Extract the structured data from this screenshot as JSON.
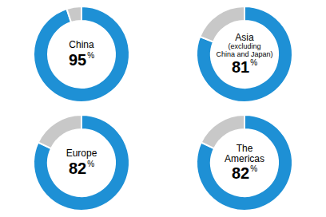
{
  "chart_data": [
    {
      "type": "pie",
      "title": "China",
      "values": [
        95,
        5
      ],
      "colors": [
        "#1e90d5",
        "#c8c8c8"
      ],
      "data_labels": true,
      "value_labels": [
        "95%",
        null
      ]
    },
    {
      "type": "pie",
      "title": "Asia\n(excluding\nChina and Japan)",
      "values": [
        81,
        19
      ],
      "colors": [
        "#1e90d5",
        "#c8c8c8"
      ],
      "data_labels": true,
      "value_labels": [
        "81%",
        null
      ]
    },
    {
      "type": "pie",
      "title": "Europe",
      "values": [
        82,
        18
      ],
      "colors": [
        "#1e90d5",
        "#c8c8c8"
      ],
      "data_labels": true,
      "value_labels": [
        "82%",
        null
      ]
    },
    {
      "type": "pie",
      "title": "The\nAmericas",
      "values": [
        82,
        18
      ],
      "colors": [
        "#1e90d5",
        "#c8c8c8"
      ],
      "data_labels": true,
      "value_labels": [
        "82%",
        null
      ]
    }
  ]
}
